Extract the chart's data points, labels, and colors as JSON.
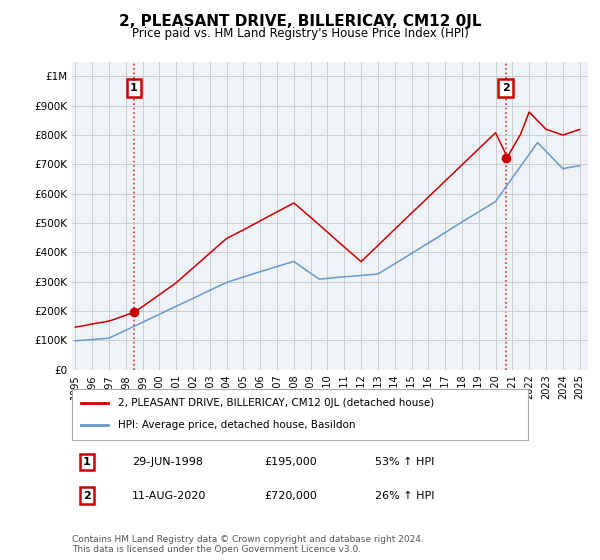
{
  "title": "2, PLEASANT DRIVE, BILLERICAY, CM12 0JL",
  "subtitle": "Price paid vs. HM Land Registry's House Price Index (HPI)",
  "red_label": "2, PLEASANT DRIVE, BILLERICAY, CM12 0JL (detached house)",
  "blue_label": "HPI: Average price, detached house, Basildon",
  "annotation1_date": "29-JUN-1998",
  "annotation1_price": "£195,000",
  "annotation1_hpi": "53% ↑ HPI",
  "annotation2_date": "11-AUG-2020",
  "annotation2_price": "£720,000",
  "annotation2_hpi": "26% ↑ HPI",
  "footer": "Contains HM Land Registry data © Crown copyright and database right 2024.\nThis data is licensed under the Open Government Licence v3.0.",
  "ylim": [
    0,
    1050000
  ],
  "yticks": [
    0,
    100000,
    200000,
    300000,
    400000,
    500000,
    600000,
    700000,
    800000,
    900000,
    1000000
  ],
  "ytick_labels": [
    "£0",
    "£100K",
    "£200K",
    "£300K",
    "£400K",
    "£500K",
    "£600K",
    "£700K",
    "£800K",
    "£900K",
    "£1M"
  ],
  "red_color": "#cc0000",
  "blue_color": "#6699cc",
  "grid_color": "#cccccc",
  "background_color": "#ffffff",
  "plot_bg_color": "#eff3f8",
  "sale1_x": 1998.49,
  "sale1_y": 195000,
  "sale2_x": 2020.61,
  "sale2_y": 720000,
  "xmin": 1994.8,
  "xmax": 2025.5
}
